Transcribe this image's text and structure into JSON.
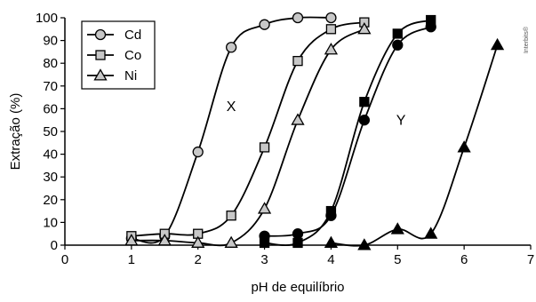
{
  "chart_data": {
    "type": "line",
    "xlabel": "pH de equilíbrio",
    "ylabel": "Extração (%)",
    "xlim": [
      0,
      7
    ],
    "ylim": [
      0,
      100
    ],
    "x_ticks": [
      0,
      1,
      2,
      3,
      4,
      5,
      6,
      7
    ],
    "y_ticks": [
      0,
      10,
      20,
      30,
      40,
      50,
      60,
      70,
      80,
      90,
      100
    ],
    "grid": false,
    "legend_position": "top-left",
    "legend": [
      {
        "name": "Cd",
        "marker": "circle-open"
      },
      {
        "name": "Co",
        "marker": "square-open"
      },
      {
        "name": "Ni",
        "marker": "triangle-open"
      }
    ],
    "annotations": [
      {
        "text": "X",
        "x": 2.5,
        "y": 59
      },
      {
        "text": "Y",
        "x": 5.05,
        "y": 53
      }
    ],
    "watermark": "Interbits®",
    "series": [
      {
        "name": "Cd",
        "group": "X",
        "marker": "circle",
        "fill": "open",
        "points": [
          [
            1.0,
            3
          ],
          [
            1.5,
            4
          ],
          [
            2.0,
            41
          ],
          [
            2.5,
            87
          ],
          [
            3.0,
            97
          ],
          [
            3.5,
            100
          ],
          [
            4.0,
            100
          ]
        ]
      },
      {
        "name": "Co",
        "group": "X",
        "marker": "square",
        "fill": "open",
        "points": [
          [
            1.0,
            4
          ],
          [
            1.5,
            5
          ],
          [
            2.0,
            5
          ],
          [
            2.5,
            13
          ],
          [
            3.0,
            43
          ],
          [
            3.5,
            81
          ],
          [
            4.0,
            95
          ],
          [
            4.5,
            98
          ]
        ]
      },
      {
        "name": "Ni",
        "group": "X",
        "marker": "triangle",
        "fill": "open",
        "points": [
          [
            1.0,
            2
          ],
          [
            1.5,
            2
          ],
          [
            2.0,
            1
          ],
          [
            2.5,
            1
          ],
          [
            3.0,
            16
          ],
          [
            3.5,
            55
          ],
          [
            4.0,
            86
          ],
          [
            4.5,
            95
          ]
        ]
      },
      {
        "name": "Cd",
        "group": "Y",
        "marker": "circle",
        "fill": "solid",
        "points": [
          [
            3.0,
            4
          ],
          [
            3.5,
            5
          ],
          [
            4.0,
            13
          ],
          [
            4.5,
            55
          ],
          [
            5.0,
            88
          ],
          [
            5.5,
            96
          ]
        ]
      },
      {
        "name": "Co",
        "group": "Y",
        "marker": "square",
        "fill": "solid",
        "points": [
          [
            3.0,
            1
          ],
          [
            3.5,
            1
          ],
          [
            4.0,
            15
          ],
          [
            4.5,
            63
          ],
          [
            5.0,
            93
          ],
          [
            5.5,
            99
          ]
        ]
      },
      {
        "name": "Ni",
        "group": "Y",
        "marker": "triangle",
        "fill": "solid",
        "points": [
          [
            4.0,
            1
          ],
          [
            4.5,
            0
          ],
          [
            5.0,
            7
          ],
          [
            5.5,
            5
          ],
          [
            6.0,
            43
          ],
          [
            6.5,
            88
          ]
        ]
      }
    ]
  }
}
